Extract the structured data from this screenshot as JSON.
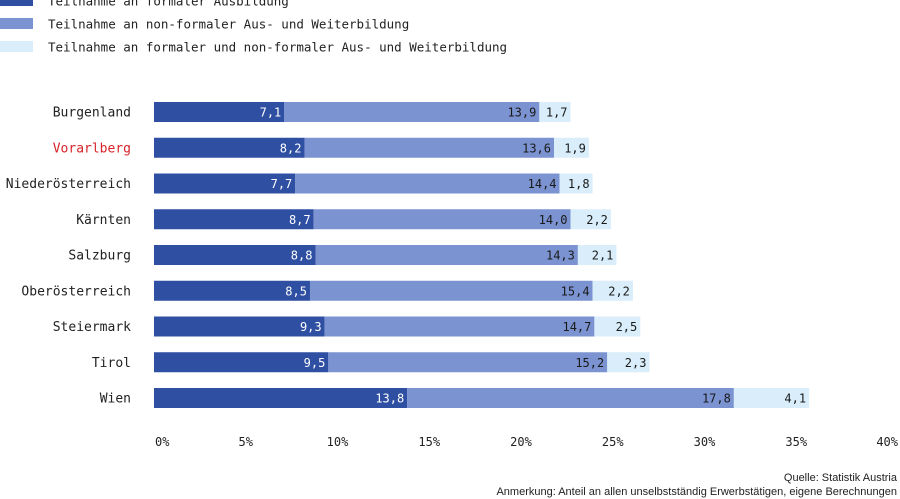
{
  "chart_data": {
    "type": "bar",
    "stacked": true,
    "orientation": "horizontal",
    "categories": [
      "Burgenland",
      "Vorarlberg",
      "Niederösterreich",
      "Kärnten",
      "Salzburg",
      "Oberösterreich",
      "Steiermark",
      "Tirol",
      "Wien"
    ],
    "highlighted_category": "Vorarlberg",
    "series": [
      {
        "name": "Teilnahme an formaler Ausbildung",
        "values": [
          7.1,
          8.2,
          7.7,
          8.7,
          8.8,
          8.5,
          9.3,
          9.5,
          13.8
        ],
        "labels": [
          "7,1",
          "8,2",
          "7,7",
          "8,7",
          "8,8",
          "8,5",
          "9,3",
          "9,5",
          "13,8"
        ]
      },
      {
        "name": "Teilnahme an non-formaler Aus- und Weiterbildung",
        "values": [
          13.9,
          13.6,
          14.4,
          14.0,
          14.3,
          15.4,
          14.7,
          15.2,
          17.8
        ],
        "labels": [
          "13,9",
          "13,6",
          "14,4",
          "14,0",
          "14,3",
          "15,4",
          "14,7",
          "15,2",
          "17,8"
        ]
      },
      {
        "name": "Teilnahme an formaler und non-formaler Aus- und Weiterbildung",
        "values": [
          1.7,
          1.9,
          1.8,
          2.2,
          2.1,
          2.2,
          2.5,
          2.3,
          4.1
        ],
        "labels": [
          "1,7",
          "1,9",
          "1,8",
          "2,2",
          "2,1",
          "2,2",
          "2,5",
          "2,3",
          "4,1"
        ]
      }
    ],
    "xlim": [
      0,
      40
    ],
    "xticks": [
      "0%",
      "5%",
      "10%",
      "15%",
      "20%",
      "25%",
      "30%",
      "35%",
      "40%"
    ],
    "legend_position": "top-left",
    "grid": false
  },
  "colors": {
    "series": [
      "#2f4fa3",
      "#7b93d1",
      "#d9eefa"
    ],
    "label_text": [
      "#ffffff",
      "#1a1a1a",
      "#1a1a1a"
    ],
    "highlight": "#d8232a",
    "text": "#222222"
  },
  "footer": {
    "source": "Quelle: Statistik Austria",
    "note": "Anmerkung: Anteil an allen unselbstständig Erwerbstätigen, eigene Berechnungen"
  }
}
